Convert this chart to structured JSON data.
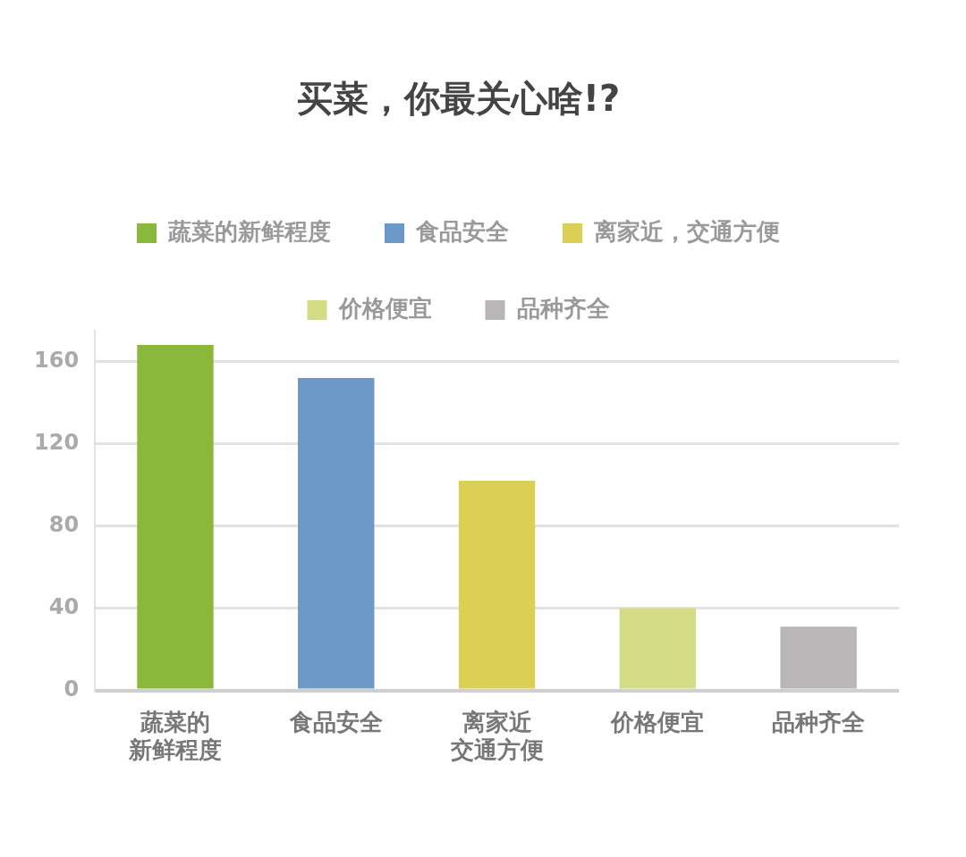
{
  "chart_data": {
    "type": "bar",
    "title": "买菜，你最关心啥!?",
    "categories": [
      "蔬菜的新鲜程度",
      "食品安全",
      "离家近交通方便",
      "价格便宜",
      "品种齐全"
    ],
    "series": [
      {
        "name": "蔬菜的新鲜程度",
        "color": "#8ab83a",
        "values": [
          168,
          null,
          null,
          null,
          null
        ]
      },
      {
        "name": "食品安全",
        "color": "#6b98c6",
        "values": [
          null,
          152,
          null,
          null,
          null
        ]
      },
      {
        "name": "离家近，交通方便",
        "color": "#dccf55",
        "values": [
          null,
          null,
          102,
          null,
          null
        ]
      },
      {
        "name": "价格便宜",
        "color": "#d3dc84",
        "values": [
          null,
          null,
          null,
          40,
          null
        ]
      },
      {
        "name": "品种齐全",
        "color": "#b8b6b7",
        "values": [
          null,
          null,
          null,
          null,
          31
        ]
      }
    ],
    "ylim": [
      0,
      175
    ],
    "yticks": [
      0,
      40,
      80,
      120,
      160
    ],
    "grid": "y",
    "legend": "top"
  }
}
